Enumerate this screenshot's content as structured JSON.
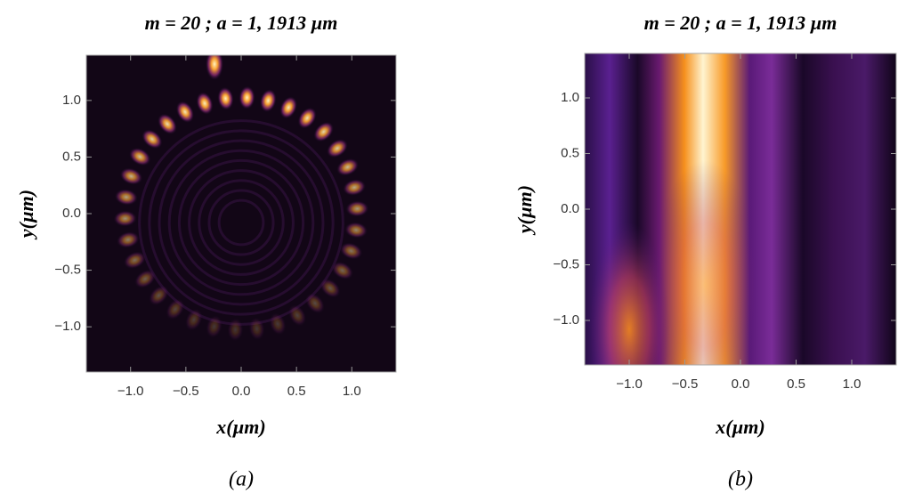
{
  "chart_data": [
    {
      "type": "heatmap",
      "title": "m = 20 ; a = 1, 1913 µm",
      "xlabel": "x(µm)",
      "ylabel": "y(µm)",
      "caption": "(a)",
      "xlim": [
        -1.4,
        1.4
      ],
      "ylim": [
        -1.4,
        1.4
      ],
      "xticks": [
        {
          "value": -1.0,
          "label": "−1.0"
        },
        {
          "value": -0.5,
          "label": "−0.5"
        },
        {
          "value": 0,
          "label": "0.0"
        },
        {
          "value": 0.5,
          "label": "0.5"
        },
        {
          "value": 1.0,
          "label": "1.0"
        }
      ],
      "yticks": [
        {
          "value": -1.0,
          "label": "−1.0"
        },
        {
          "value": -0.5,
          "label": "−0.5"
        },
        {
          "value": 0,
          "label": "0.0"
        },
        {
          "value": 0.5,
          "label": "0.5"
        },
        {
          "value": 1.0,
          "label": "1.0"
        }
      ]
    },
    {
      "type": "heatmap",
      "title": "m = 20 ; a = 1, 1913 µm",
      "xlabel": "x(µm)",
      "ylabel": "y(µm)",
      "caption": "(b)",
      "xlim": [
        -1.4,
        1.4
      ],
      "ylim": [
        -1.4,
        1.4
      ],
      "xticks": [
        {
          "value": -1.0,
          "label": "−1.0"
        },
        {
          "value": -0.5,
          "label": "−0.5"
        },
        {
          "value": 0,
          "label": "0.0"
        },
        {
          "value": 0.5,
          "label": "0.5"
        },
        {
          "value": 1.0,
          "label": "1.0"
        }
      ],
      "yticks": [
        {
          "value": -1.0,
          "label": "−1.0"
        },
        {
          "value": -0.5,
          "label": "−0.5"
        },
        {
          "value": 0,
          "label": "0.0"
        },
        {
          "value": 0.5,
          "label": "0.5"
        },
        {
          "value": 1.0,
          "label": "1.0"
        }
      ]
    }
  ]
}
